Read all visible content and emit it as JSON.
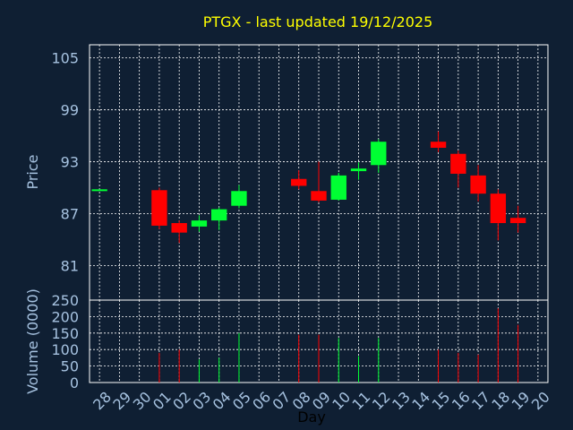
{
  "chart_data": {
    "type": "candlestick",
    "title": "PTGX - last updated 19/12/2025",
    "xlabel": "Day",
    "ylabel_price": "Price",
    "ylabel_volume": "Volume (0000)",
    "colors": {
      "up": "#00ff33",
      "down": "#ff0000",
      "background": "#0f1f33",
      "title": "#ffff00",
      "ticks": "#a6c2e0"
    },
    "x_ticks": [
      "28",
      "29",
      "30",
      "01",
      "02",
      "03",
      "04",
      "05",
      "06",
      "07",
      "08",
      "09",
      "10",
      "11",
      "12",
      "13",
      "14",
      "15",
      "16",
      "17",
      "18",
      "19",
      "20"
    ],
    "price_ticks": [
      "81",
      "87",
      "93",
      "99",
      "105"
    ],
    "price_ylim": [
      77,
      106.5
    ],
    "volume_ticks": [
      "0",
      "50",
      "100",
      "150",
      "200",
      "250"
    ],
    "volume_ylim": [
      0,
      250
    ],
    "candles": [
      {
        "day": "28",
        "open": 89.8,
        "close": 89.8,
        "high": 89.8,
        "low": 89.8,
        "volume": 0
      },
      {
        "day": "01",
        "open": 89.7,
        "close": 85.6,
        "high": 90.0,
        "low": 85.2,
        "volume": 90
      },
      {
        "day": "02",
        "open": 85.9,
        "close": 84.8,
        "high": 86.2,
        "low": 83.6,
        "volume": 100
      },
      {
        "day": "03",
        "open": 85.5,
        "close": 86.2,
        "high": 86.8,
        "low": 84.9,
        "volume": 70
      },
      {
        "day": "04",
        "open": 86.2,
        "close": 87.5,
        "high": 87.7,
        "low": 85.1,
        "volume": 75
      },
      {
        "day": "05",
        "open": 87.9,
        "close": 89.6,
        "high": 90.3,
        "low": 87.6,
        "volume": 150
      },
      {
        "day": "08",
        "open": 91.0,
        "close": 90.2,
        "high": 92.0,
        "low": 89.8,
        "volume": 145
      },
      {
        "day": "09",
        "open": 89.6,
        "close": 88.5,
        "high": 93.0,
        "low": 88.3,
        "volume": 145
      },
      {
        "day": "10",
        "open": 88.6,
        "close": 91.4,
        "high": 91.7,
        "low": 88.5,
        "volume": 135
      },
      {
        "day": "11",
        "open": 91.9,
        "close": 92.2,
        "high": 92.9,
        "low": 90.9,
        "volume": 80
      },
      {
        "day": "12",
        "open": 92.6,
        "close": 95.3,
        "high": 95.6,
        "low": 91.7,
        "volume": 135
      },
      {
        "day": "15",
        "open": 95.3,
        "close": 94.6,
        "high": 96.5,
        "low": 94.1,
        "volume": 100
      },
      {
        "day": "16",
        "open": 93.9,
        "close": 91.6,
        "high": 94.3,
        "low": 90.0,
        "volume": 90
      },
      {
        "day": "17",
        "open": 91.4,
        "close": 89.3,
        "high": 92.6,
        "low": 88.4,
        "volume": 85
      },
      {
        "day": "18",
        "open": 89.3,
        "close": 85.9,
        "high": 89.8,
        "low": 83.9,
        "volume": 225
      },
      {
        "day": "19",
        "open": 86.5,
        "close": 85.9,
        "high": 87.9,
        "low": 84.8,
        "volume": 175
      }
    ]
  }
}
